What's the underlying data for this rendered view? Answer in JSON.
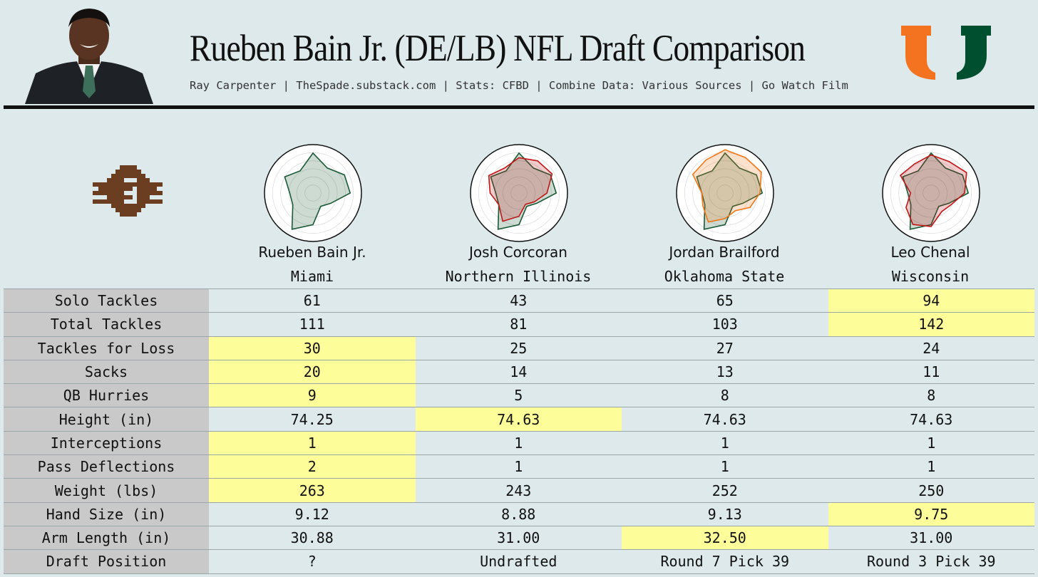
{
  "header": {
    "title": "Rueben Bain Jr. (DE/LB) NFL Draft Comparison",
    "subtitle": "Ray Carpenter | TheSpade.substack.com | Stats: CFBD | Combine Data: Various Sources | Go Watch Film"
  },
  "colors": {
    "background": "#dde9ea",
    "highlight": "#fdfd9a",
    "label_bg": "#c9c9c9",
    "miami_green": "#1b5a36",
    "comp_red": "#c01818",
    "comp_orange": "#f07818",
    "logo_orange": "#f47321",
    "logo_green": "#005030",
    "pixel_brown": "#6b3e22"
  },
  "players": [
    {
      "name": "Rueben Bain Jr.",
      "school": "Miami"
    },
    {
      "name": "Josh Corcoran",
      "school": "Northern Illinois"
    },
    {
      "name": "Jordan Brailford",
      "school": "Oklahoma State"
    },
    {
      "name": "Leo Chenal",
      "school": "Wisconsin"
    }
  ],
  "chart_data": {
    "type": "table",
    "radar_charts": [
      {
        "series": [
          {
            "name": "Rueben Bain Jr.",
            "color": "#1b5a36",
            "values": [
              0.86,
              0.62,
              0.78,
              0.8,
              0.44,
              0.33,
              0.68,
              0.9,
              0.5,
              0.5,
              0.7,
              0.55
            ]
          }
        ]
      },
      {
        "series": [
          {
            "name": "Rueben Bain Jr.",
            "color": "#1b5a36",
            "values": [
              0.86,
              0.62,
              0.78,
              0.8,
              0.44,
              0.33,
              0.68,
              0.9,
              0.5,
              0.5,
              0.7,
              0.55
            ]
          },
          {
            "name": "Josh Corcoran",
            "color": "#c01818",
            "values": [
              0.76,
              0.8,
              0.82,
              0.6,
              0.38,
              0.28,
              0.5,
              0.7,
              0.5,
              0.62,
              0.75,
              0.62
            ]
          }
        ]
      },
      {
        "series": [
          {
            "name": "Rueben Bain Jr.",
            "color": "#1b5a36",
            "values": [
              0.86,
              0.62,
              0.78,
              0.8,
              0.44,
              0.33,
              0.68,
              0.9,
              0.5,
              0.5,
              0.7,
              0.55
            ]
          },
          {
            "name": "Jordan Brailford",
            "color": "#f07818",
            "values": [
              0.93,
              0.88,
              0.9,
              0.75,
              0.62,
              0.44,
              0.55,
              0.72,
              0.55,
              0.5,
              0.8,
              0.82
            ]
          }
        ]
      },
      {
        "series": [
          {
            "name": "Rueben Bain Jr.",
            "color": "#1b5a36",
            "values": [
              0.86,
              0.62,
              0.78,
              0.8,
              0.44,
              0.33,
              0.68,
              0.9,
              0.5,
              0.5,
              0.7,
              0.55
            ]
          },
          {
            "name": "Leo Chenal",
            "color": "#c01818",
            "values": [
              0.82,
              0.78,
              0.88,
              0.72,
              0.5,
              0.46,
              0.72,
              0.78,
              0.62,
              0.44,
              0.76,
              0.72
            ]
          }
        ]
      }
    ],
    "rows": [
      {
        "label": "Solo Tackles",
        "values": [
          "61",
          "43",
          "65",
          "94"
        ],
        "highlight": 3
      },
      {
        "label": "Total Tackles",
        "values": [
          "111",
          "81",
          "103",
          "142"
        ],
        "highlight": 3
      },
      {
        "label": "Tackles for Loss",
        "values": [
          "30",
          "25",
          "27",
          "24"
        ],
        "highlight": 0
      },
      {
        "label": "Sacks",
        "values": [
          "20",
          "14",
          "13",
          "11"
        ],
        "highlight": 0
      },
      {
        "label": "QB Hurries",
        "values": [
          "9",
          "5",
          "8",
          "8"
        ],
        "highlight": 0
      },
      {
        "label": "Height (in)",
        "values": [
          "74.25",
          "74.63",
          "74.63",
          "74.63"
        ],
        "highlight": 1
      },
      {
        "label": "Interceptions",
        "values": [
          "1",
          "1",
          "1",
          "1"
        ],
        "highlight": 0
      },
      {
        "label": "Pass Deflections",
        "values": [
          "2",
          "1",
          "1",
          "1"
        ],
        "highlight": 0
      },
      {
        "label": "Weight (lbs)",
        "values": [
          "263",
          "243",
          "252",
          "250"
        ],
        "highlight": 0
      },
      {
        "label": "Hand Size (in)",
        "values": [
          "9.12",
          "8.88",
          "9.13",
          "9.75"
        ],
        "highlight": 3
      },
      {
        "label": "Arm Length (in)",
        "values": [
          "30.88",
          "31.00",
          "32.50",
          "31.00"
        ],
        "highlight": 2
      },
      {
        "label": "Draft Position",
        "values": [
          "?",
          "Undrafted",
          "Round 7 Pick 39",
          "Round 3 Pick 39"
        ],
        "highlight": -1
      }
    ]
  }
}
